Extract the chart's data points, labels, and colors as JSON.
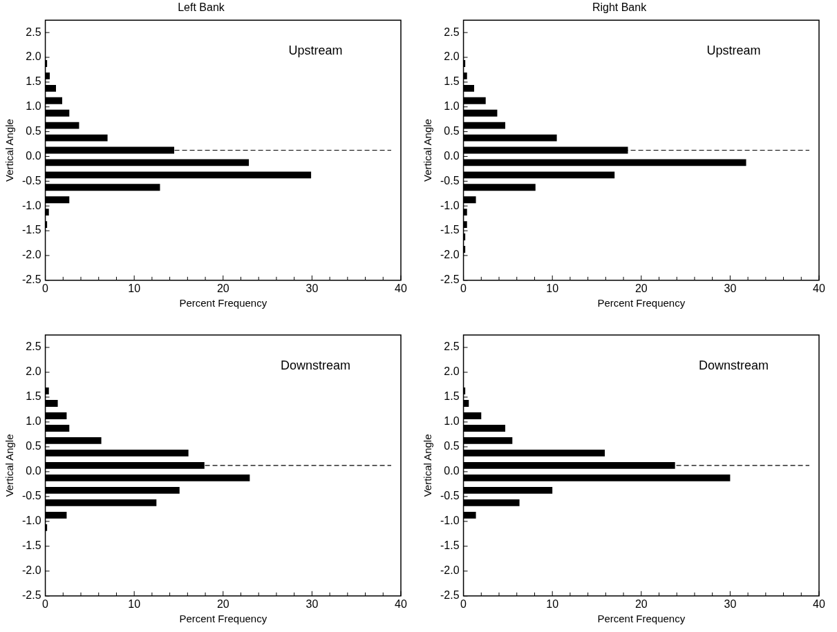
{
  "chart_data": [
    {
      "type": "histogram",
      "orientation": "horizontal",
      "title": "Left Bank",
      "xlabel": "Percent Frequency",
      "ylabel": "Vertical Angle",
      "annotations": [
        "Upstream"
      ],
      "color": "#000000",
      "bins": [
        -2.0,
        -1.75,
        -1.5,
        -1.25,
        -1.0,
        -0.75,
        -0.5,
        -0.25,
        0.0,
        0.25,
        0.5,
        0.75,
        1.0,
        1.25,
        1.5,
        1.75,
        2.0
      ],
      "values": [
        0,
        0,
        0.2,
        0.4,
        2.7,
        12.9,
        29.9,
        22.9,
        14.5,
        7.0,
        3.8,
        2.7,
        1.9,
        1.2,
        0.5,
        0.2
      ],
      "ref_lines": [
        {
          "axis": "y",
          "value": 0.125,
          "line_style": "dashed",
          "color": "#000000"
        }
      ],
      "xlim": [
        0,
        40
      ],
      "xticks": [
        0,
        {
          "value": 2,
          "label": null
        },
        {
          "value": 4,
          "label": null
        },
        {
          "value": 6,
          "label": null
        },
        {
          "value": 8,
          "label": null
        },
        10,
        {
          "value": 12,
          "label": null
        },
        {
          "value": 14,
          "label": null
        },
        {
          "value": 16,
          "label": null
        },
        {
          "value": 18,
          "label": null
        },
        20,
        {
          "value": 22,
          "label": null
        },
        {
          "value": 24,
          "label": null
        },
        {
          "value": 26,
          "label": null
        },
        {
          "value": 28,
          "label": null
        },
        30,
        {
          "value": 32,
          "label": null
        },
        {
          "value": 34,
          "label": null
        },
        {
          "value": 36,
          "label": null
        },
        {
          "value": 38,
          "label": null
        },
        40
      ],
      "ylim": [
        -2.5,
        2.75
      ],
      "yticks": [
        -2.5,
        {
          "value": -2,
          "label": "-2.0"
        },
        -1.5,
        {
          "value": -1,
          "label": "-1.0"
        },
        -0.5,
        {
          "value": 0,
          "label": "0.0"
        },
        0.5,
        {
          "value": 1,
          "label": "1.0"
        },
        1.5,
        {
          "value": 2,
          "label": "2.0"
        },
        2.5
      ],
      "grid": false,
      "legend": false
    },
    {
      "type": "histogram",
      "orientation": "horizontal",
      "title": "Right Bank",
      "xlabel": "Percent Frequency",
      "ylabel": "Vertical Angle",
      "annotations": [
        "Upstream"
      ],
      "color": "#000000",
      "bins": [
        -2.0,
        -1.75,
        -1.5,
        -1.25,
        -1.0,
        -0.75,
        -0.5,
        -0.25,
        0.0,
        0.25,
        0.5,
        0.75,
        1.0,
        1.25,
        1.5,
        1.75,
        2.0
      ],
      "values": [
        0.2,
        0.2,
        0.4,
        0.4,
        1.4,
        8.1,
        17.0,
        31.8,
        18.5,
        10.5,
        4.7,
        3.8,
        2.5,
        1.2,
        0.4,
        0.2
      ],
      "ref_lines": [
        {
          "axis": "y",
          "value": 0.125,
          "line_style": "dashed",
          "color": "#000000"
        }
      ],
      "xlim": [
        0,
        40
      ],
      "xticks": [
        0,
        {
          "value": 2,
          "label": null
        },
        {
          "value": 4,
          "label": null
        },
        {
          "value": 6,
          "label": null
        },
        {
          "value": 8,
          "label": null
        },
        10,
        {
          "value": 12,
          "label": null
        },
        {
          "value": 14,
          "label": null
        },
        {
          "value": 16,
          "label": null
        },
        {
          "value": 18,
          "label": null
        },
        20,
        {
          "value": 22,
          "label": null
        },
        {
          "value": 24,
          "label": null
        },
        {
          "value": 26,
          "label": null
        },
        {
          "value": 28,
          "label": null
        },
        30,
        {
          "value": 32,
          "label": null
        },
        {
          "value": 34,
          "label": null
        },
        {
          "value": 36,
          "label": null
        },
        {
          "value": 38,
          "label": null
        },
        40
      ],
      "ylim": [
        -2.5,
        2.75
      ],
      "yticks": [
        -2.5,
        {
          "value": -2,
          "label": "-2.0"
        },
        -1.5,
        {
          "value": -1,
          "label": "-1.0"
        },
        -0.5,
        {
          "value": 0,
          "label": "0.0"
        },
        0.5,
        {
          "value": 1,
          "label": "1.0"
        },
        1.5,
        {
          "value": 2,
          "label": "2.0"
        },
        2.5
      ],
      "grid": false,
      "legend": false
    },
    {
      "type": "histogram",
      "orientation": "horizontal",
      "xlabel": "Percent Frequency",
      "ylabel": "Vertical Angle",
      "annotations": [
        "Downstream"
      ],
      "color": "#000000",
      "bins": [
        -2.0,
        -1.75,
        -1.5,
        -1.25,
        -1.0,
        -0.75,
        -0.5,
        -0.25,
        0.0,
        0.25,
        0.5,
        0.75,
        1.0,
        1.25,
        1.5,
        1.75,
        2.0
      ],
      "values": [
        0,
        0,
        0,
        0.2,
        2.4,
        12.5,
        15.1,
        23.0,
        17.9,
        16.1,
        6.3,
        2.7,
        2.4,
        1.4,
        0.4,
        0
      ],
      "ref_lines": [
        {
          "axis": "y",
          "value": 0.125,
          "line_style": "dashed",
          "color": "#000000"
        }
      ],
      "xlim": [
        0,
        40
      ],
      "xticks": [
        0,
        {
          "value": 2,
          "label": null
        },
        {
          "value": 4,
          "label": null
        },
        {
          "value": 6,
          "label": null
        },
        {
          "value": 8,
          "label": null
        },
        10,
        {
          "value": 12,
          "label": null
        },
        {
          "value": 14,
          "label": null
        },
        {
          "value": 16,
          "label": null
        },
        {
          "value": 18,
          "label": null
        },
        20,
        {
          "value": 22,
          "label": null
        },
        {
          "value": 24,
          "label": null
        },
        {
          "value": 26,
          "label": null
        },
        {
          "value": 28,
          "label": null
        },
        30,
        {
          "value": 32,
          "label": null
        },
        {
          "value": 34,
          "label": null
        },
        {
          "value": 36,
          "label": null
        },
        {
          "value": 38,
          "label": null
        },
        40
      ],
      "ylim": [
        -2.5,
        2.75
      ],
      "yticks": [
        -2.5,
        {
          "value": -2,
          "label": "-2.0"
        },
        -1.5,
        {
          "value": -1,
          "label": "-1.0"
        },
        -0.5,
        {
          "value": 0,
          "label": "0.0"
        },
        0.5,
        {
          "value": 1,
          "label": "1.0"
        },
        1.5,
        {
          "value": 2,
          "label": "2.0"
        },
        2.5
      ],
      "grid": false,
      "legend": false
    },
    {
      "type": "histogram",
      "orientation": "horizontal",
      "xlabel": "Percent Frequency",
      "ylabel": "Vertical Angle",
      "annotations": [
        "Downstream"
      ],
      "color": "#000000",
      "bins": [
        -2.0,
        -1.75,
        -1.5,
        -1.25,
        -1.0,
        -0.75,
        -0.5,
        -0.25,
        0.0,
        0.25,
        0.5,
        0.75,
        1.0,
        1.25,
        1.5,
        1.75,
        2.0
      ],
      "values": [
        0,
        0,
        0,
        0,
        1.4,
        6.3,
        10.0,
        30.0,
        23.8,
        15.9,
        5.5,
        4.7,
        2.0,
        0.6,
        0.2,
        0
      ],
      "ref_lines": [
        {
          "axis": "y",
          "value": 0.125,
          "line_style": "dashed",
          "color": "#000000"
        }
      ],
      "xlim": [
        0,
        40
      ],
      "xticks": [
        0,
        {
          "value": 2,
          "label": null
        },
        {
          "value": 4,
          "label": null
        },
        {
          "value": 6,
          "label": null
        },
        {
          "value": 8,
          "label": null
        },
        10,
        {
          "value": 12,
          "label": null
        },
        {
          "value": 14,
          "label": null
        },
        {
          "value": 16,
          "label": null
        },
        {
          "value": 18,
          "label": null
        },
        20,
        {
          "value": 22,
          "label": null
        },
        {
          "value": 24,
          "label": null
        },
        {
          "value": 26,
          "label": null
        },
        {
          "value": 28,
          "label": null
        },
        30,
        {
          "value": 32,
          "label": null
        },
        {
          "value": 34,
          "label": null
        },
        {
          "value": 36,
          "label": null
        },
        {
          "value": 38,
          "label": null
        },
        40
      ],
      "ylim": [
        -2.5,
        2.75
      ],
      "yticks": [
        -2.5,
        {
          "value": -2,
          "label": "-2.0"
        },
        -1.5,
        {
          "value": -1,
          "label": "-1.0"
        },
        -0.5,
        {
          "value": 0,
          "label": "0.0"
        },
        0.5,
        {
          "value": 1,
          "label": "1.0"
        },
        1.5,
        {
          "value": 2,
          "label": "2.0"
        },
        2.5
      ],
      "grid": false,
      "legend": false
    }
  ]
}
